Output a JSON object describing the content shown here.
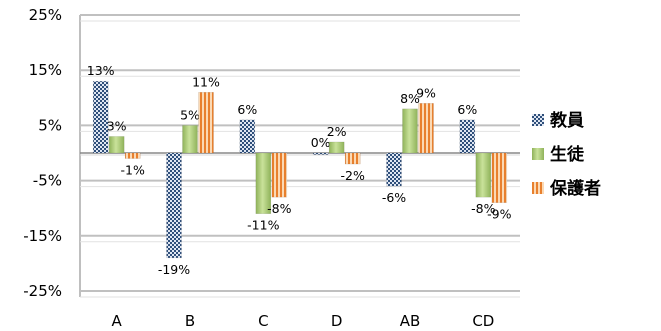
{
  "chart_data": {
    "type": "bar",
    "categories": [
      "A",
      "B",
      "C",
      "D",
      "AB",
      "CD"
    ],
    "ylim": [
      -25,
      25
    ],
    "yticks": [
      25,
      15,
      5,
      -5,
      -15,
      -25
    ],
    "ytick_labels": [
      "25%",
      "15%",
      "5%",
      "-5%",
      "-15%",
      "-25%"
    ],
    "grid": true,
    "legend_position": "right",
    "series": [
      {
        "name": "教員",
        "values": [
          13,
          -19,
          6,
          0,
          -6,
          6
        ],
        "labels": [
          "13%",
          "-19%",
          "6%",
          "0%",
          "-6%",
          "6%"
        ],
        "color": "#2f4f7a",
        "pattern": "checker"
      },
      {
        "name": "生徒",
        "values": [
          3,
          5,
          -11,
          2,
          8,
          -8
        ],
        "labels": [
          "3%",
          "5%",
          "-11%",
          "2%",
          "8%",
          "-8%"
        ],
        "color": "#a8c972",
        "pattern": "solid"
      },
      {
        "name": "保護者",
        "values": [
          -1,
          11,
          -8,
          -2,
          9,
          -9
        ],
        "labels": [
          "-1%",
          "11%",
          "-8%",
          "-2%",
          "9%",
          "-9%"
        ],
        "color": "#e88a3c",
        "pattern": "vstripe"
      }
    ]
  }
}
